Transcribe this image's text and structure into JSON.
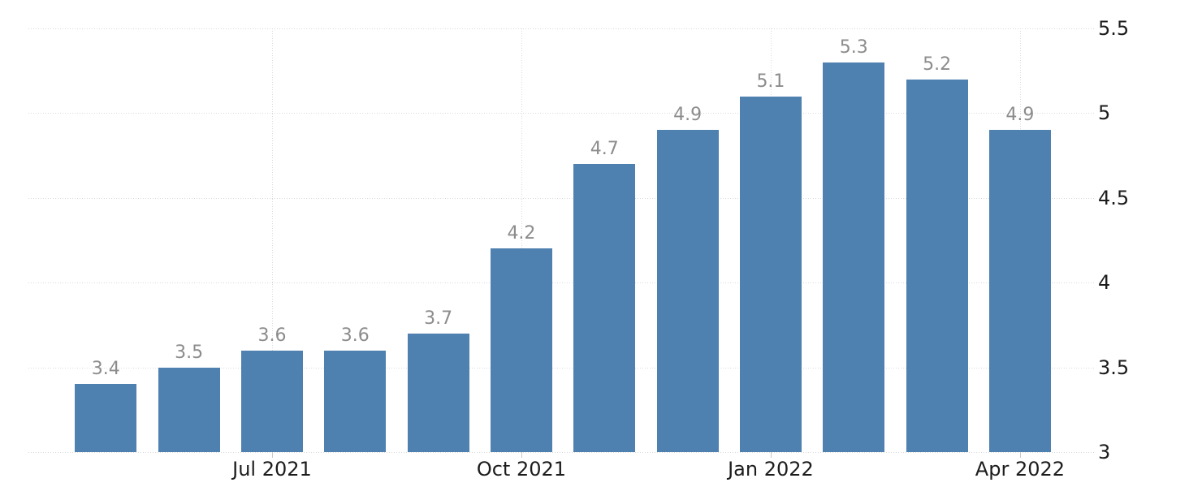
{
  "chart_data": {
    "type": "bar",
    "title": "",
    "values": [
      3.4,
      3.5,
      3.6,
      3.6,
      3.7,
      4.2,
      4.7,
      4.9,
      5.1,
      5.3,
      5.2,
      4.9
    ],
    "bar_labels": [
      "3.4",
      "3.5",
      "3.6",
      "3.6",
      "3.7",
      "4.2",
      "4.7",
      "4.9",
      "5.1",
      "5.3",
      "5.2",
      "4.9"
    ],
    "x_ticks": [
      {
        "label": "Jul 2021",
        "bar_index": 2
      },
      {
        "label": "Oct 2021",
        "bar_index": 5
      },
      {
        "label": "Jan 2022",
        "bar_index": 8
      },
      {
        "label": "Apr 2022",
        "bar_index": 11
      }
    ],
    "y_ticks": [
      {
        "label": "3",
        "value": 3.0
      },
      {
        "label": "3.5",
        "value": 3.5
      },
      {
        "label": "4",
        "value": 4.0
      },
      {
        "label": "4.5",
        "value": 4.5
      },
      {
        "label": "5",
        "value": 5.0
      },
      {
        "label": "5.5",
        "value": 5.5
      }
    ],
    "ylim": [
      3.0,
      5.5
    ],
    "y_axis_side": "right",
    "grid": true,
    "legend": false,
    "colors": {
      "bar": "#4e80b0",
      "value_label": "#8c8c8c",
      "axis_label": "#1c1c1c",
      "gridline": "#d9d9d9",
      "tick_mark": "#c9c9c9",
      "background": "#ffffff"
    }
  }
}
